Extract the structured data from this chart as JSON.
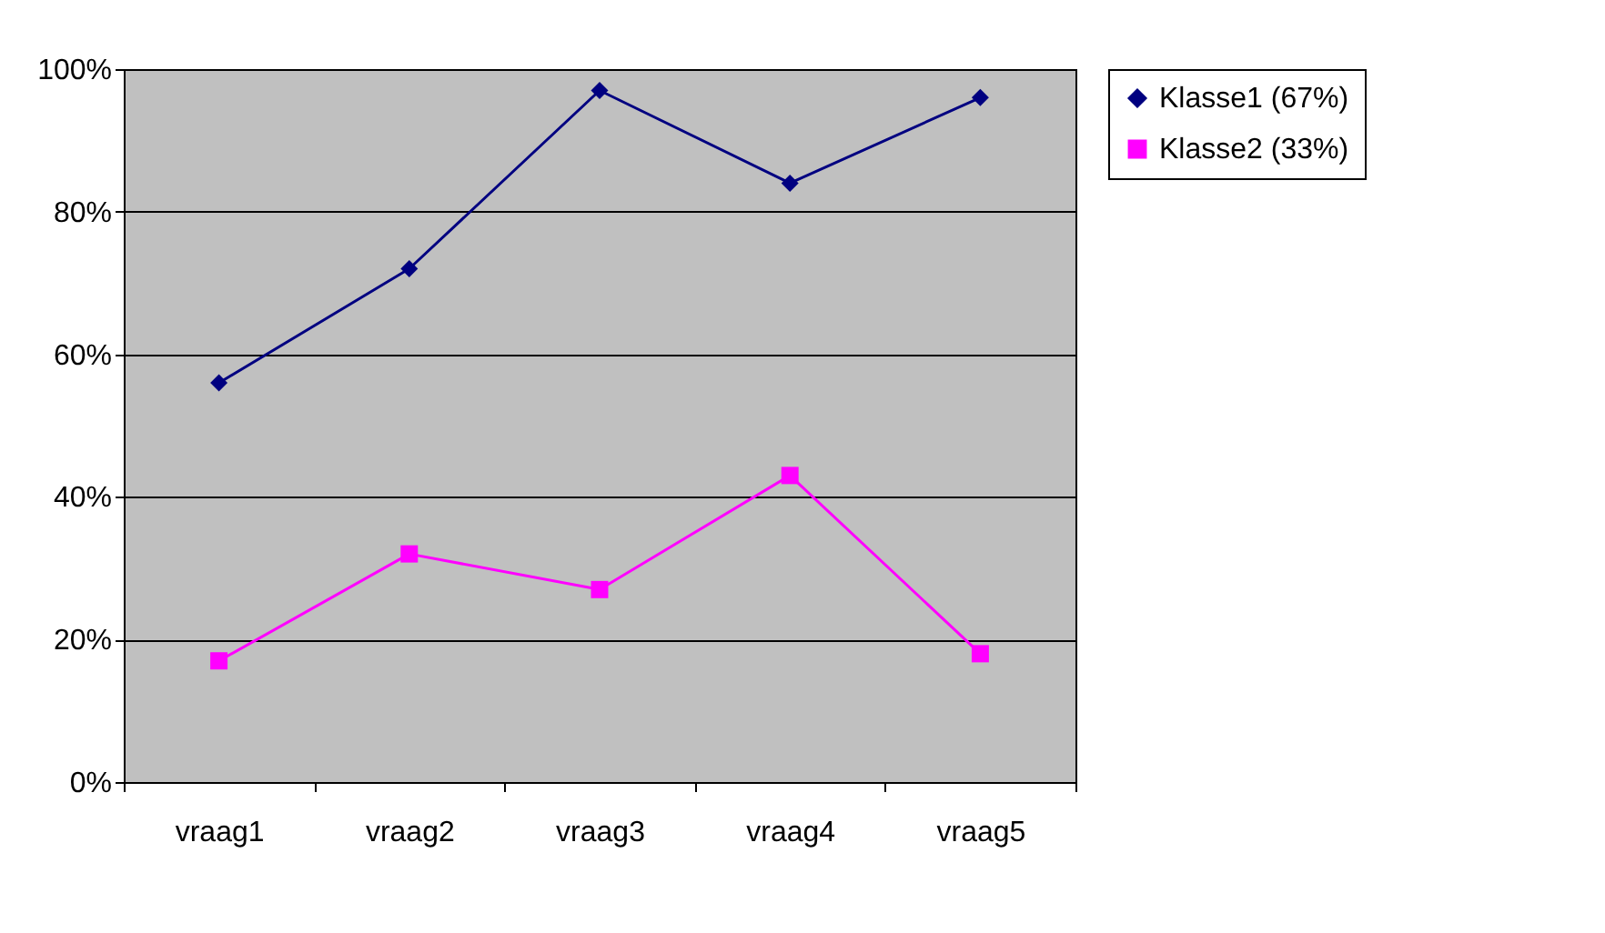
{
  "chart_data": {
    "type": "line",
    "categories": [
      "vraag1",
      "vraag2",
      "vraag3",
      "vraag4",
      "vraag5"
    ],
    "series": [
      {
        "name": "Klasse1 (67%)",
        "color": "#000080",
        "marker": "diamond",
        "values": [
          56,
          72,
          97,
          84,
          96
        ]
      },
      {
        "name": "Klasse2 (33%)",
        "color": "#ff00ff",
        "marker": "square",
        "values": [
          17,
          32,
          27,
          43,
          18
        ]
      }
    ],
    "ylim": [
      0,
      100
    ],
    "yticks": [
      {
        "value": 0,
        "label": "0%"
      },
      {
        "value": 20,
        "label": "20%"
      },
      {
        "value": 40,
        "label": "40%"
      },
      {
        "value": 60,
        "label": "60%"
      },
      {
        "value": 80,
        "label": "80%"
      },
      {
        "value": 100,
        "label": "100%"
      }
    ],
    "grid": "y",
    "legend": "right",
    "line_style": "solid"
  }
}
